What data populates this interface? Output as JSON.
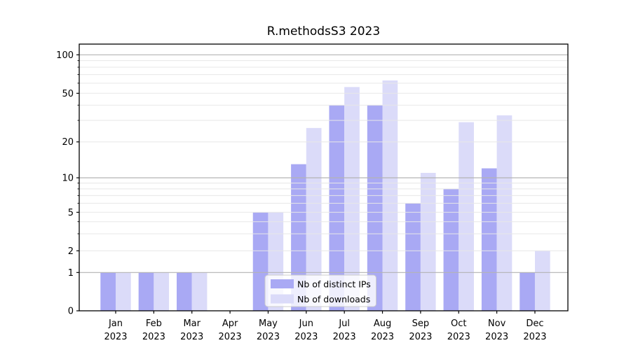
{
  "chart_data": {
    "type": "bar",
    "title": "R.methodsS3 2023",
    "categories": [
      "Jan",
      "Feb",
      "Mar",
      "Apr",
      "May",
      "Jun",
      "Jul",
      "Aug",
      "Sep",
      "Oct",
      "Nov",
      "Dec"
    ],
    "category_year": "2023",
    "series": [
      {
        "name": "Nb of distinct IPs",
        "color": "#a9a9f4",
        "values": [
          1,
          1,
          1,
          0,
          5,
          13,
          40,
          40,
          6,
          8,
          12,
          1
        ]
      },
      {
        "name": "Nb of downloads",
        "color": "#dbdbf9",
        "values": [
          1,
          1,
          1,
          0,
          5,
          26,
          56,
          63,
          11,
          29,
          33,
          2
        ]
      }
    ],
    "y_axis": {
      "scale": "log-like (log10 of value, 0 pinned to baseline)",
      "tick_labels": [
        "0",
        "1",
        "2",
        "5",
        "10",
        "20",
        "50",
        "100"
      ],
      "tick_values": [
        0,
        1,
        2,
        5,
        10,
        20,
        50,
        100
      ],
      "minor_grid_values": [
        2,
        3,
        4,
        5,
        6,
        7,
        8,
        9,
        20,
        30,
        40,
        50,
        60,
        70,
        80,
        90
      ],
      "major_grid_values": [
        1,
        10,
        100
      ],
      "range": [
        0,
        100
      ]
    },
    "x_axis": {
      "tick_label_line1": [
        "Jan",
        "Feb",
        "Mar",
        "Apr",
        "May",
        "Jun",
        "Jul",
        "Aug",
        "Sep",
        "Oct",
        "Nov",
        "Dec"
      ],
      "tick_label_line2": [
        "2023",
        "2023",
        "2023",
        "2023",
        "2023",
        "2023",
        "2023",
        "2023",
        "2023",
        "2023",
        "2023",
        "2023"
      ]
    },
    "legend": {
      "entries": [
        "Nb of distinct IPs",
        "Nb of downloads"
      ],
      "position": "bottom-center"
    },
    "grid": true,
    "colors": {
      "bar_dark": "#a9a9f4",
      "bar_light": "#dbdbf9",
      "grid_major": "#b3b3b3",
      "grid_minor": "#e7e7e7",
      "axis": "#000000",
      "legend_border": "#cccccc"
    }
  }
}
